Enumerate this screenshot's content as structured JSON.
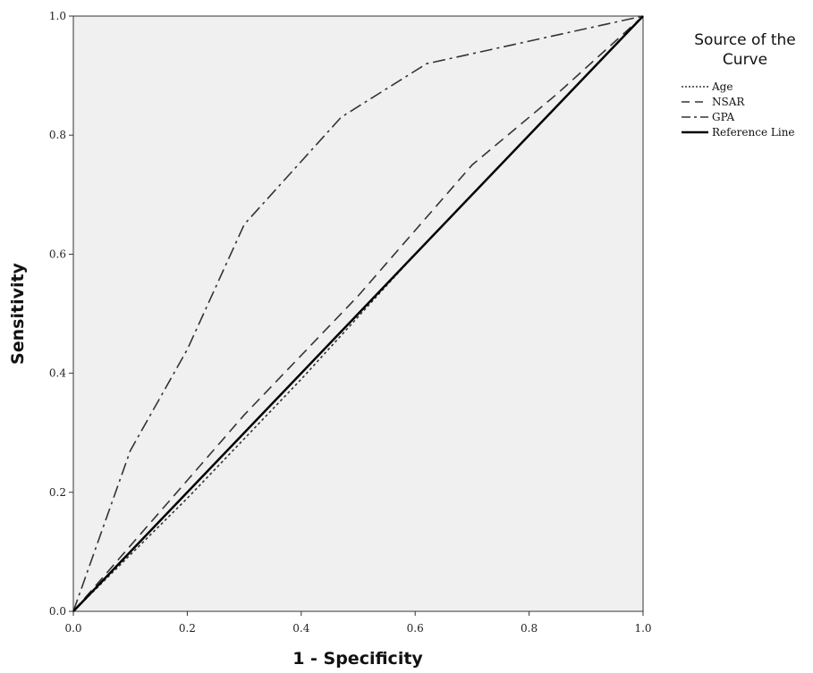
{
  "chart_data": {
    "type": "line",
    "xlabel": "1 - Specificity",
    "ylabel": "Sensitivity",
    "xlim": [
      0.0,
      1.0
    ],
    "ylim": [
      0.0,
      1.0
    ],
    "xticks": [
      "0.0",
      "0.2",
      "0.4",
      "0.6",
      "0.8",
      "1.0"
    ],
    "yticks": [
      "0.0",
      "0.2",
      "0.4",
      "0.6",
      "0.8",
      "1.0"
    ],
    "grid": false,
    "background": "#f0f0f0",
    "legend": {
      "title_line1": "Source of the",
      "title_line2": "Curve",
      "placement": "right"
    },
    "series": [
      {
        "name": "Age",
        "style": "dotted",
        "color": "#333333",
        "x": [
          0.0,
          0.2,
          0.4,
          0.6,
          0.8,
          1.0
        ],
        "y": [
          0.0,
          0.19,
          0.39,
          0.6,
          0.8,
          1.0
        ]
      },
      {
        "name": "NSAR",
        "style": "dashed",
        "color": "#333333",
        "x": [
          0.0,
          0.1,
          0.3,
          0.5,
          0.7,
          0.85,
          1.0
        ],
        "y": [
          0.0,
          0.11,
          0.33,
          0.53,
          0.75,
          0.87,
          1.0
        ]
      },
      {
        "name": "GPA",
        "style": "dashdot",
        "color": "#333333",
        "x": [
          0.0,
          0.1,
          0.2,
          0.3,
          0.47,
          0.62,
          1.0
        ],
        "y": [
          0.0,
          0.27,
          0.44,
          0.65,
          0.83,
          0.92,
          1.0
        ]
      },
      {
        "name": "Reference Line",
        "style": "solid",
        "color": "#000000",
        "x": [
          0.0,
          1.0
        ],
        "y": [
          0.0,
          1.0
        ]
      }
    ]
  }
}
